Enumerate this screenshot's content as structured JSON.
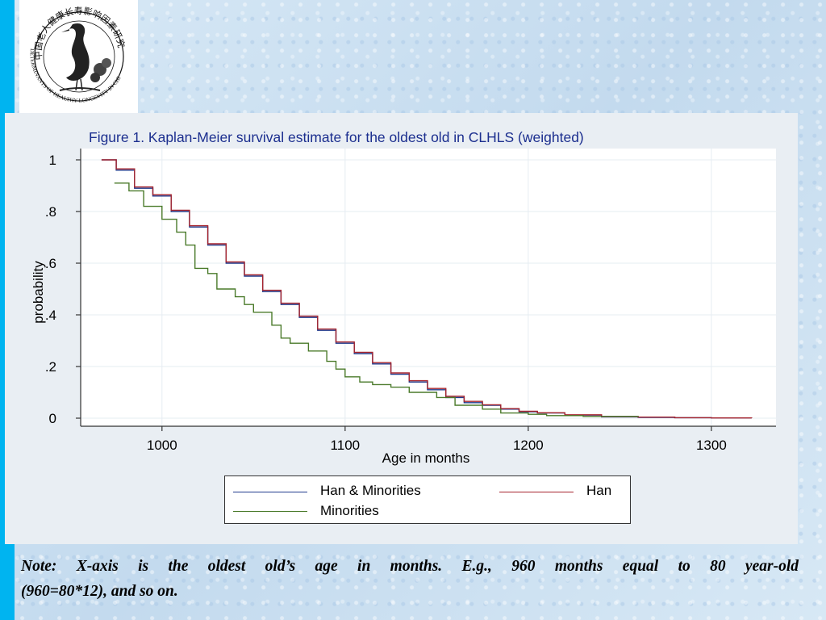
{
  "slide": {
    "logo": {
      "text_top": "中国老人健康长寿影响因素研究",
      "text_side": "DETERMINANTS OF HEALTHY LONGEVITY IN CHINA"
    },
    "note_line1": "Note: X-axis is the oldest old’s age in months. E.g., 960 months equal to 80 year-old",
    "note_line2": "(960=80*12), and so on."
  },
  "chart_data": {
    "type": "line",
    "title": "Figure 1. Kaplan-Meier survival estimate for the oldest old in CLHLS (weighted)",
    "xlabel": "Age in months",
    "ylabel": "probability",
    "xlim": [
      960,
      1330
    ],
    "ylim": [
      0,
      1
    ],
    "x_ticks": [
      1000,
      1100,
      1200,
      1300
    ],
    "y_ticks": [
      0,
      0.2,
      0.4,
      0.6,
      0.8,
      1
    ],
    "y_tick_labels": [
      "0",
      ".2",
      ".4",
      ".6",
      ".8",
      "1"
    ],
    "grid": true,
    "legend_position": "bottom",
    "series": [
      {
        "name": "Han & Minorities",
        "color": "#1f3a8c",
        "x": [
          967,
          975,
          985,
          995,
          1005,
          1015,
          1025,
          1035,
          1045,
          1055,
          1065,
          1075,
          1085,
          1095,
          1105,
          1115,
          1125,
          1135,
          1145,
          1155,
          1165,
          1175,
          1185,
          1195,
          1205,
          1220,
          1240,
          1260,
          1280,
          1300,
          1322
        ],
        "y": [
          1.0,
          0.96,
          0.89,
          0.86,
          0.8,
          0.74,
          0.67,
          0.6,
          0.55,
          0.49,
          0.44,
          0.39,
          0.34,
          0.29,
          0.25,
          0.21,
          0.17,
          0.14,
          0.11,
          0.08,
          0.06,
          0.05,
          0.035,
          0.025,
          0.02,
          0.012,
          0.005,
          0.003,
          0.002,
          0.001,
          0.0
        ]
      },
      {
        "name": "Han",
        "color": "#a6242e",
        "x": [
          967,
          975,
          985,
          995,
          1005,
          1015,
          1025,
          1035,
          1045,
          1055,
          1065,
          1075,
          1085,
          1095,
          1105,
          1115,
          1125,
          1135,
          1145,
          1155,
          1165,
          1175,
          1185,
          1195,
          1205,
          1220,
          1240,
          1260,
          1280,
          1300,
          1322
        ],
        "y": [
          1.0,
          0.965,
          0.895,
          0.865,
          0.805,
          0.745,
          0.675,
          0.605,
          0.555,
          0.495,
          0.445,
          0.395,
          0.345,
          0.295,
          0.255,
          0.215,
          0.175,
          0.145,
          0.115,
          0.085,
          0.065,
          0.052,
          0.037,
          0.027,
          0.021,
          0.013,
          0.006,
          0.004,
          0.002,
          0.001,
          0.0
        ]
      },
      {
        "name": "Minorities",
        "color": "#4a7a2a",
        "x": [
          974,
          982,
          990,
          1000,
          1008,
          1013,
          1018,
          1025,
          1030,
          1040,
          1045,
          1050,
          1060,
          1065,
          1070,
          1080,
          1090,
          1095,
          1100,
          1108,
          1115,
          1125,
          1135,
          1150,
          1160,
          1175,
          1185,
          1200,
          1210,
          1230,
          1260
        ],
        "y": [
          0.91,
          0.88,
          0.82,
          0.77,
          0.72,
          0.67,
          0.58,
          0.56,
          0.5,
          0.47,
          0.44,
          0.41,
          0.36,
          0.31,
          0.29,
          0.26,
          0.22,
          0.19,
          0.16,
          0.14,
          0.13,
          0.12,
          0.1,
          0.08,
          0.05,
          0.035,
          0.02,
          0.015,
          0.01,
          0.007,
          0.005
        ]
      }
    ]
  }
}
